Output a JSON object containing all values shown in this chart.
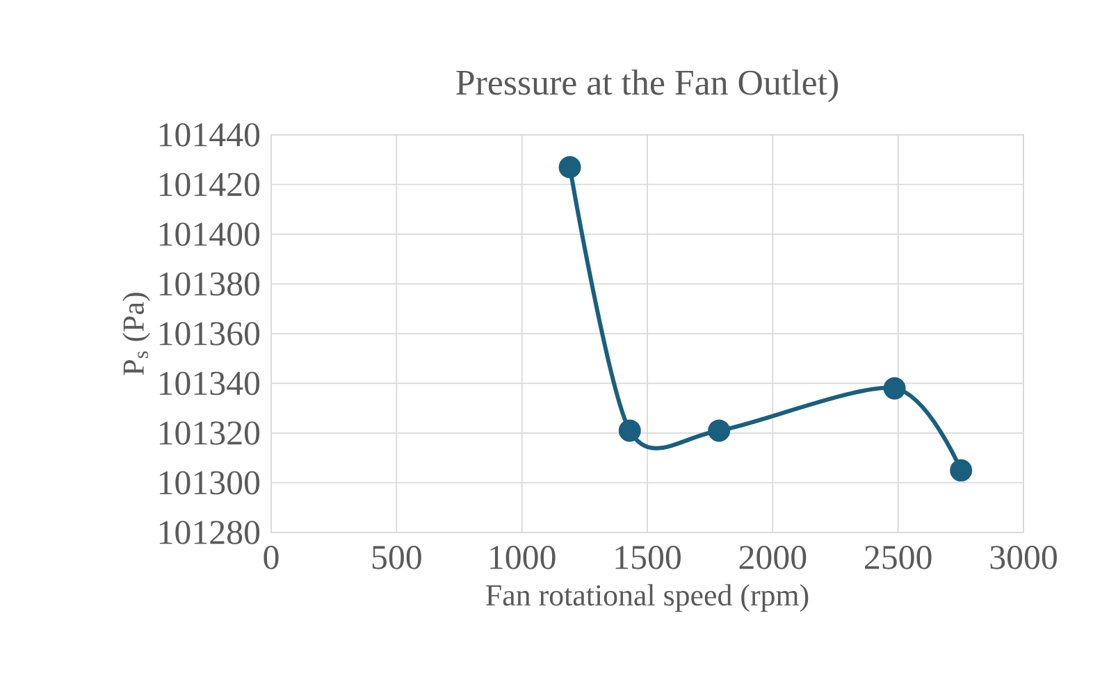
{
  "chart_data": {
    "type": "line",
    "title": "Pressure at the Fan Outlet)",
    "xlabel": "Fan rotational speed (rpm)",
    "ylabel": "P$_{s}$ (Pa)",
    "x": [
      1191,
      1430,
      1786,
      2486,
      2751
    ],
    "series": [
      {
        "color": "#1a5f7e",
        "values": [
          101427,
          101321,
          101321,
          101338,
          101305
        ]
      }
    ],
    "xlim": [
      0,
      3000
    ],
    "xticks": [
      0,
      500,
      1000,
      1500,
      2000,
      2500,
      3000
    ],
    "ylim": [
      101280,
      101440
    ],
    "yticks": [
      101280,
      101300,
      101320,
      101340,
      101360,
      101380,
      101400,
      101420,
      101440
    ],
    "grid": true,
    "marker": "circle",
    "line_style": "solid",
    "legend": false
  }
}
